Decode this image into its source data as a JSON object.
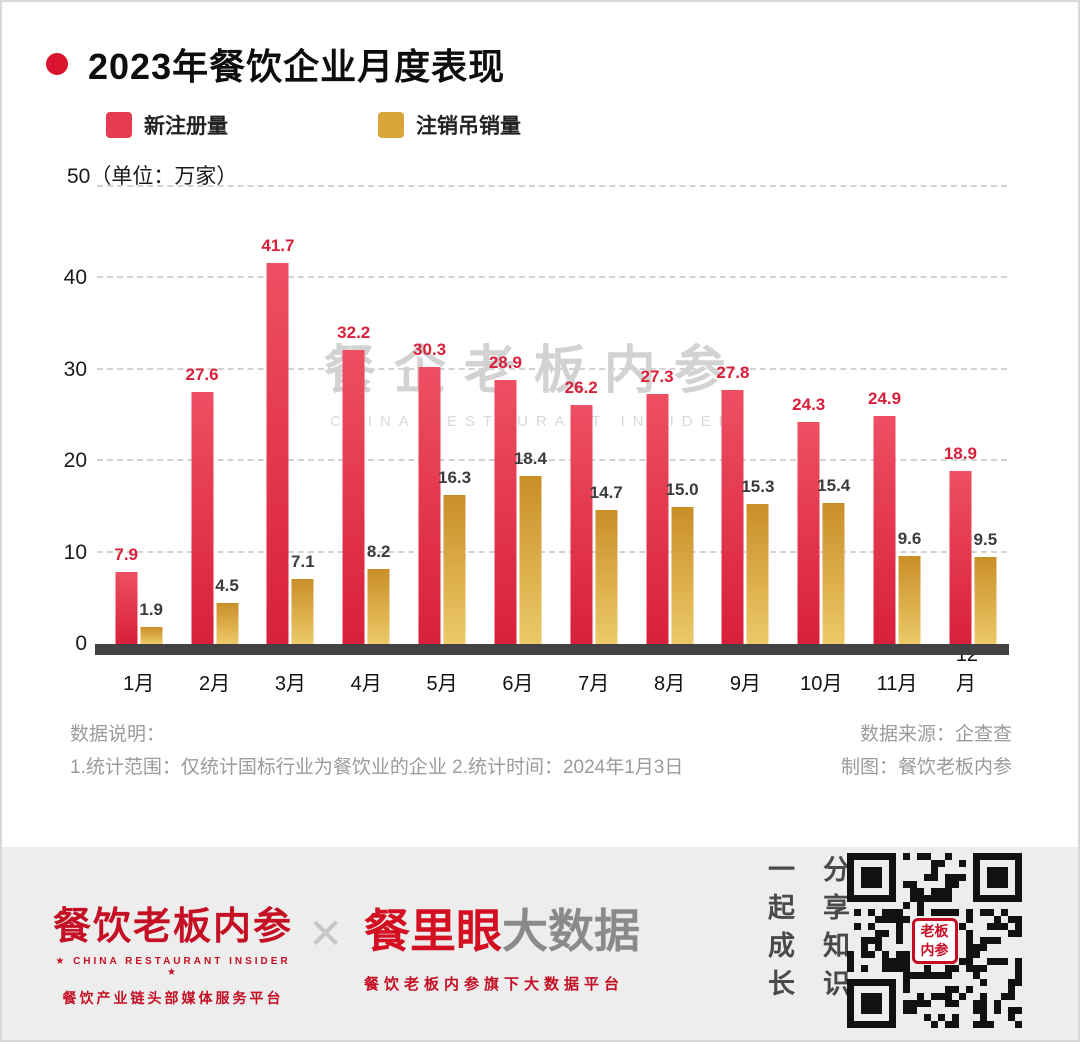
{
  "header": {
    "title": "2023年餐饮企业月度表现"
  },
  "legend": [
    {
      "label": "新注册量",
      "color": "#e63c50"
    },
    {
      "label": "注销吊销量",
      "color": "#d9a53a"
    }
  ],
  "chart_data": {
    "type": "bar",
    "title": "2023年餐饮企业月度表现",
    "unit_label": "（单位：万家）",
    "categories": [
      "1月",
      "2月",
      "3月",
      "4月",
      "5月",
      "6月",
      "7月",
      "8月",
      "9月",
      "10月",
      "11月",
      "12月"
    ],
    "series": [
      {
        "name": "新注册量",
        "color": "#d8203a",
        "values": [
          7.9,
          27.6,
          41.7,
          32.2,
          30.3,
          28.9,
          26.2,
          27.3,
          27.8,
          24.3,
          24.9,
          18.9
        ]
      },
      {
        "name": "注销吊销量",
        "color": "#d9a53a",
        "values": [
          1.9,
          4.5,
          7.1,
          8.2,
          16.3,
          18.4,
          14.7,
          15.0,
          15.3,
          15.4,
          9.6,
          9.5
        ]
      }
    ],
    "ylim": [
      0,
      50
    ],
    "yticks": [
      0,
      10,
      20,
      30,
      40,
      50
    ],
    "grid": "dashed-horizontal",
    "legend_position": "top-left"
  },
  "watermark": {
    "line1": "餐企老板内参",
    "line2": "CHINA RESTAURANT INSIDER"
  },
  "notes": {
    "heading": "数据说明：",
    "line": "1.统计范围：仅统计国标行业为餐饮业的企业 2.统计时间：2024年1月3日",
    "source": "数据来源：企查查",
    "credit": "制图：餐饮老板内参"
  },
  "footer": {
    "brand_left": {
      "name": "餐饮老板内参",
      "subtitle": "★ CHINA RESTAURANT INSIDER ★",
      "tagline": "餐饮产业链头部媒体服务平台"
    },
    "cross": "✕",
    "brand_right": {
      "name_red": "餐里眼",
      "name_gray": "大数据",
      "tagline": "餐饮老板内参旗下大数据平台"
    },
    "slogan_left": "一起成长",
    "slogan_right": "分享知识",
    "qr_logo": "老板内参"
  }
}
